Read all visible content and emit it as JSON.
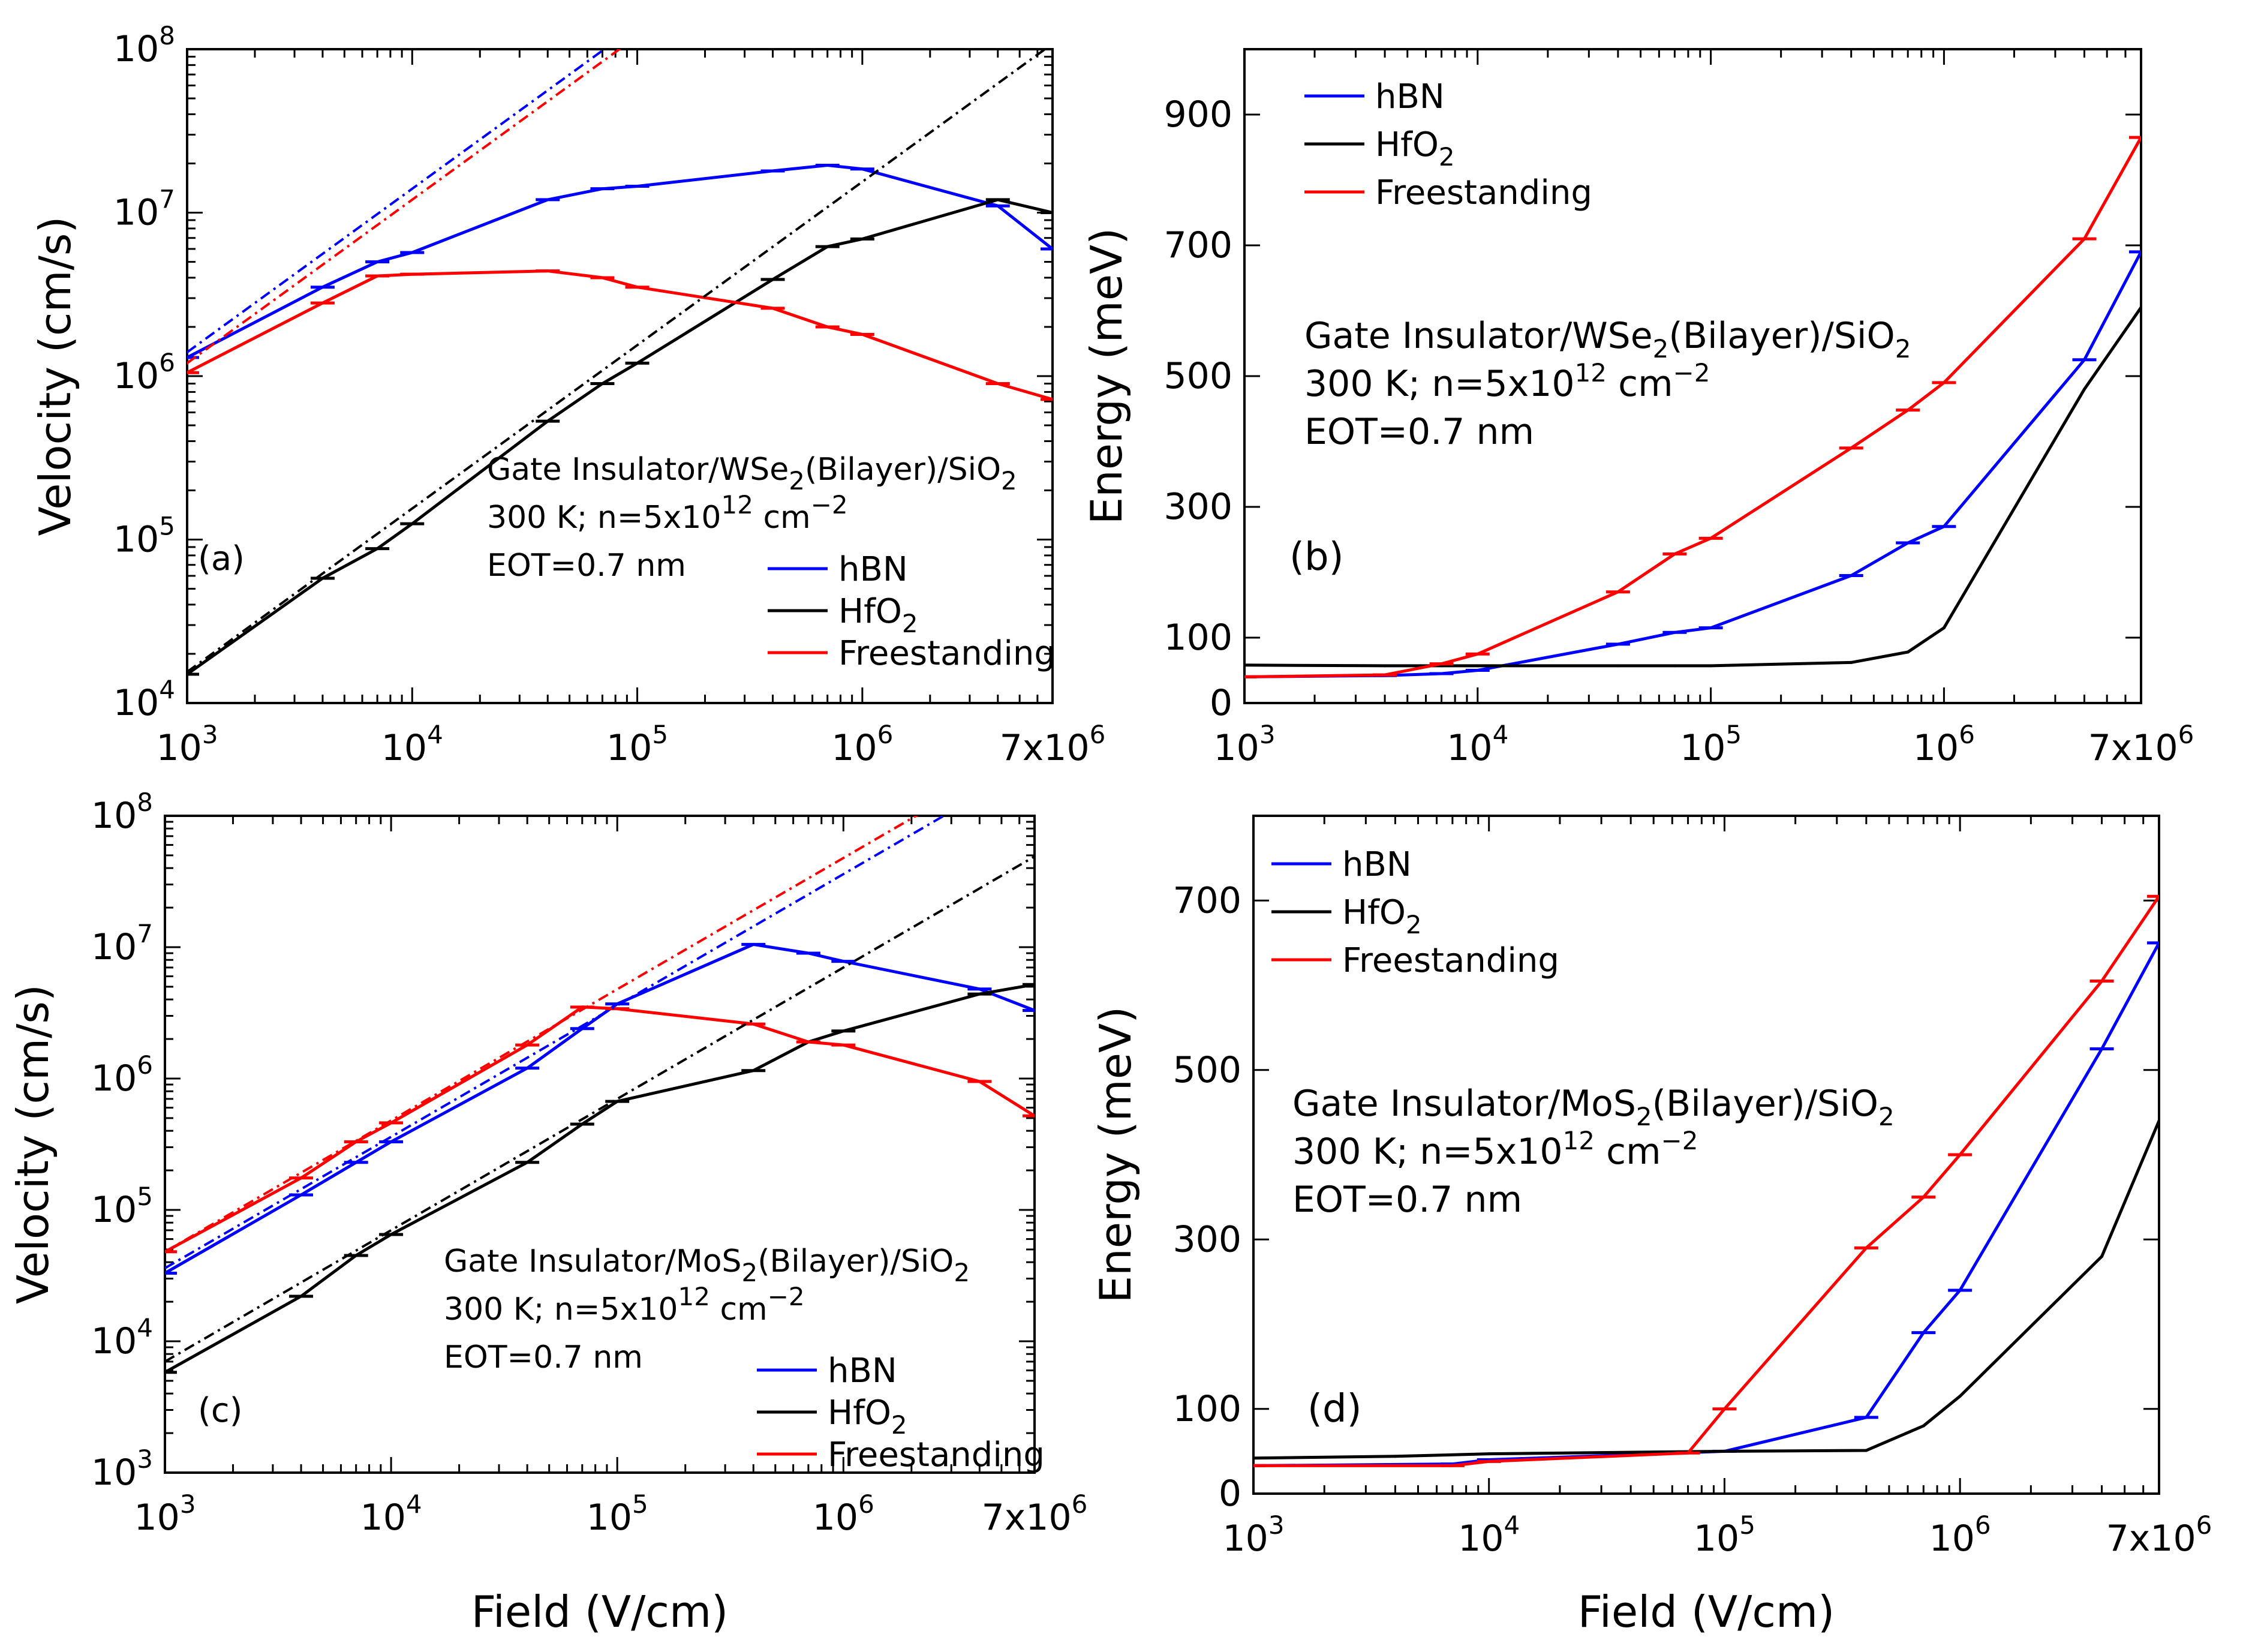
{
  "chart_data": [
    {
      "panel": "a",
      "type": "line",
      "xscale": "log",
      "yscale": "log",
      "xlim": [
        1000,
        7000000
      ],
      "ylim": [
        10000,
        100000000
      ],
      "xlabel": "",
      "ylabel": "Velocity (cm/s)",
      "xtick_values": [
        1000,
        10000,
        100000,
        1000000,
        7000000
      ],
      "xticks": [
        "10",
        "10",
        "10",
        "10",
        "7x10"
      ],
      "xtick_exps": [
        "3",
        "4",
        "5",
        "6",
        "6"
      ],
      "ytick_values": [
        10000,
        100000,
        1000000,
        10000000,
        100000000
      ],
      "yticks": [
        "10",
        "10",
        "10",
        "10",
        "10"
      ],
      "ytick_exps": [
        "4",
        "5",
        "6",
        "7",
        "8"
      ],
      "panel_label": "(a)",
      "annotation": {
        "l1_pre": "Gate Insulator/WSe",
        "l1_sub": "2",
        "l1_post": "(Bilayer)/SiO",
        "l1_sub2": "2",
        "l2_pre": "300 K; n=5x10",
        "l2_sup": "12",
        "l2_mid": " cm",
        "l2_sup2": "−2",
        "l3": "EOT=0.7 nm"
      },
      "legend": {
        "position": "bottom-right",
        "entries": [
          {
            "pre": "hBN",
            "sub": ""
          },
          {
            "pre": "HfO",
            "sub": "2"
          },
          {
            "pre": "Freestanding",
            "sub": ""
          }
        ]
      },
      "series": [
        {
          "name": "hBN",
          "color": "#0000ff",
          "errorbars": true,
          "x": [
            1000,
            4000,
            7000,
            10000,
            40000,
            70000,
            100000,
            400000,
            700000,
            1000000,
            4000000,
            7000000
          ],
          "y": [
            1300000,
            3500000,
            5000000,
            5700000,
            12000000,
            14000000,
            14500000,
            18000000,
            19500000,
            18500000,
            11000000,
            6000000
          ]
        },
        {
          "name": "HfO2",
          "color": "#000000",
          "errorbars": true,
          "x": [
            1000,
            4000,
            7000,
            10000,
            40000,
            70000,
            100000,
            400000,
            700000,
            1000000,
            4000000,
            7000000
          ],
          "y": [
            15000,
            58000,
            88000,
            125000,
            530000,
            900000,
            1200000,
            3900000,
            6200000,
            6900000,
            12000000,
            10000000
          ]
        },
        {
          "name": "Freestanding",
          "color": "#ff0000",
          "errorbars": true,
          "x": [
            1000,
            4000,
            7000,
            10000,
            40000,
            70000,
            100000,
            400000,
            700000,
            1000000,
            4000000,
            7000000
          ],
          "y": [
            1050000,
            2800000,
            4100000,
            4200000,
            4400000,
            4000000,
            3500000,
            2600000,
            2000000,
            1800000,
            900000,
            720000
          ]
        },
        {
          "name": "hBN linear",
          "color": "#0000ff",
          "dashed": true,
          "x": [
            1000,
            80000
          ],
          "y": [
            1400000,
            112000000
          ]
        },
        {
          "name": "Freestanding linear",
          "color": "#ff0000",
          "dashed": true,
          "x": [
            1000,
            85000
          ],
          "y": [
            1200000,
            102000000
          ]
        },
        {
          "name": "HfO2 linear",
          "color": "#000000",
          "dashed": true,
          "x": [
            1000,
            7000000
          ],
          "y": [
            15500,
            108000000
          ]
        }
      ]
    },
    {
      "panel": "b",
      "type": "line",
      "xscale": "log",
      "yscale": "linear",
      "xlim": [
        1000,
        7000000
      ],
      "ylim": [
        0,
        1000
      ],
      "xlabel": "",
      "ylabel": "Energy (meV)",
      "xtick_values": [
        1000,
        10000,
        100000,
        1000000,
        7000000
      ],
      "xticks": [
        "10",
        "10",
        "10",
        "10",
        "7x10"
      ],
      "xtick_exps": [
        "3",
        "4",
        "5",
        "6",
        "6"
      ],
      "ytick_values": [
        0,
        100,
        300,
        500,
        700,
        900
      ],
      "yticks": [
        "0",
        "100",
        "300",
        "500",
        "700",
        "900"
      ],
      "panel_label": "(b)",
      "annotation": {
        "l1_pre": "Gate Insulator/WSe",
        "l1_sub": "2",
        "l1_post": "(Bilayer)/SiO",
        "l1_sub2": "2",
        "l2_pre": "300 K; n=5x10",
        "l2_sup": "12",
        "l2_mid": " cm",
        "l2_sup2": "−2",
        "l3": "EOT=0.7 nm"
      },
      "legend": {
        "position": "top-left",
        "entries": [
          {
            "pre": "hBN",
            "sub": ""
          },
          {
            "pre": "HfO",
            "sub": "2"
          },
          {
            "pre": "Freestanding",
            "sub": ""
          }
        ]
      },
      "series": [
        {
          "name": "hBN",
          "color": "#0000ff",
          "errorbars": true,
          "x": [
            1000,
            4000,
            7000,
            10000,
            40000,
            70000,
            100000,
            400000,
            700000,
            1000000,
            4000000,
            7000000
          ],
          "y": [
            40,
            42,
            45,
            50,
            90,
            108,
            115,
            195,
            245,
            270,
            525,
            690
          ]
        },
        {
          "name": "HfO2",
          "color": "#000000",
          "errorbars": false,
          "x": [
            1000,
            4000,
            7000,
            10000,
            40000,
            70000,
            100000,
            400000,
            700000,
            1000000,
            4000000,
            7000000
          ],
          "y": [
            58,
            57,
            57,
            57,
            57,
            57,
            57,
            62,
            78,
            115,
            480,
            605
          ]
        },
        {
          "name": "Freestanding",
          "color": "#ff0000",
          "errorbars": true,
          "x": [
            1000,
            4000,
            7000,
            10000,
            40000,
            70000,
            100000,
            400000,
            700000,
            1000000,
            4000000,
            7000000
          ],
          "y": [
            40,
            43,
            60,
            75,
            170,
            228,
            252,
            390,
            448,
            490,
            710,
            865
          ]
        }
      ]
    },
    {
      "panel": "c",
      "type": "line",
      "xscale": "log",
      "yscale": "log",
      "xlim": [
        1000,
        7000000
      ],
      "ylim": [
        1000,
        100000000
      ],
      "xlabel": "Field (V/cm)",
      "ylabel": "Velocity (cm/s)",
      "xtick_values": [
        1000,
        10000,
        100000,
        1000000,
        7000000
      ],
      "xticks": [
        "10",
        "10",
        "10",
        "10",
        "7x10"
      ],
      "xtick_exps": [
        "3",
        "4",
        "5",
        "6",
        "6"
      ],
      "ytick_values": [
        1000,
        10000,
        100000,
        1000000,
        10000000,
        100000000
      ],
      "yticks": [
        "10",
        "10",
        "10",
        "10",
        "10",
        "10"
      ],
      "ytick_exps": [
        "3",
        "4",
        "5",
        "6",
        "7",
        "8"
      ],
      "panel_label": "(c)",
      "annotation": {
        "l1_pre": "Gate Insulator/MoS",
        "l1_sub": "2",
        "l1_post": "(Bilayer)/SiO",
        "l1_sub2": "2",
        "l2_pre": "300 K; n=5x10",
        "l2_sup": "12",
        "l2_mid": " cm",
        "l2_sup2": "−2",
        "l3": "EOT=0.7 nm"
      },
      "legend": {
        "position": "bottom-right",
        "entries": [
          {
            "pre": "hBN",
            "sub": ""
          },
          {
            "pre": "HfO",
            "sub": "2"
          },
          {
            "pre": "Freestanding",
            "sub": ""
          }
        ]
      },
      "series": [
        {
          "name": "hBN",
          "color": "#0000ff",
          "errorbars": true,
          "x": [
            1000,
            4000,
            7000,
            10000,
            40000,
            70000,
            100000,
            400000,
            700000,
            1000000,
            4000000,
            7000000
          ],
          "y": [
            33000,
            130000,
            230000,
            330000,
            1200000,
            2400000,
            3700000,
            10500000,
            9000000,
            7800000,
            4800000,
            3300000
          ]
        },
        {
          "name": "HfO2",
          "color": "#000000",
          "errorbars": true,
          "x": [
            1000,
            4000,
            7000,
            10000,
            40000,
            70000,
            100000,
            400000,
            700000,
            1000000,
            4000000,
            7000000
          ],
          "y": [
            5800,
            22000,
            45000,
            65000,
            230000,
            450000,
            670000,
            1150000,
            1900000,
            2300000,
            4400000,
            5200000
          ]
        },
        {
          "name": "Freestanding",
          "color": "#ff0000",
          "errorbars": true,
          "x": [
            1000,
            4000,
            7000,
            10000,
            40000,
            70000,
            100000,
            400000,
            700000,
            1000000,
            4000000,
            7000000
          ],
          "y": [
            48000,
            175000,
            330000,
            460000,
            1800000,
            3500000,
            3400000,
            2600000,
            1900000,
            1800000,
            950000,
            520000
          ]
        },
        {
          "name": "Freestanding linear",
          "color": "#ff0000",
          "dashed": true,
          "x": [
            1000,
            2200000
          ],
          "y": [
            48000,
            105000000
          ]
        },
        {
          "name": "hBN linear",
          "color": "#0000ff",
          "dashed": true,
          "x": [
            1000,
            3000000
          ],
          "y": [
            36000,
            108000000
          ]
        },
        {
          "name": "HfO2 linear",
          "color": "#000000",
          "dashed": true,
          "x": [
            1000,
            7000000
          ],
          "y": [
            7000,
            49000000
          ]
        }
      ]
    },
    {
      "panel": "d",
      "type": "line",
      "xscale": "log",
      "yscale": "linear",
      "xlim": [
        1000,
        7000000
      ],
      "ylim": [
        0,
        800
      ],
      "xlabel": "Field (V/cm)",
      "ylabel": "Energy (meV)",
      "xtick_values": [
        1000,
        10000,
        100000,
        1000000,
        7000000
      ],
      "xticks": [
        "10",
        "10",
        "10",
        "10",
        "7x10"
      ],
      "xtick_exps": [
        "3",
        "4",
        "5",
        "6",
        "6"
      ],
      "ytick_values": [
        0,
        100,
        300,
        500,
        700
      ],
      "yticks": [
        "0",
        "100",
        "300",
        "500",
        "700"
      ],
      "panel_label": "(d)",
      "annotation": {
        "l1_pre": "Gate Insulator/MoS",
        "l1_sub": "2",
        "l1_post": "(Bilayer)/SiO",
        "l1_sub2": "2",
        "l2_pre": "300 K; n=5x10",
        "l2_sup": "12",
        "l2_mid": " cm",
        "l2_sup2": "−2",
        "l3": "EOT=0.7 nm"
      },
      "legend": {
        "position": "top-left",
        "entries": [
          {
            "pre": "hBN",
            "sub": ""
          },
          {
            "pre": "HfO",
            "sub": "2"
          },
          {
            "pre": "Freestanding",
            "sub": ""
          }
        ]
      },
      "series": [
        {
          "name": "hBN",
          "color": "#0000ff",
          "errorbars": true,
          "x": [
            1000,
            7000,
            10000,
            100000,
            400000,
            700000,
            1000000,
            4000000,
            7000000
          ],
          "y": [
            33,
            35,
            40,
            50,
            90,
            190,
            240,
            525,
            650
          ]
        },
        {
          "name": "HfO2",
          "color": "#000000",
          "errorbars": false,
          "x": [
            1000,
            4000,
            10000,
            100000,
            400000,
            700000,
            1000000,
            4000000,
            7000000
          ],
          "y": [
            42,
            44,
            47,
            50,
            51,
            80,
            115,
            280,
            440
          ]
        },
        {
          "name": "Freestanding",
          "color": "#ff0000",
          "errorbars": true,
          "x": [
            1000,
            7000,
            10000,
            70000,
            100000,
            400000,
            700000,
            1000000,
            4000000,
            7000000
          ],
          "y": [
            33,
            33,
            38,
            48,
            100,
            290,
            350,
            400,
            605,
            705
          ]
        }
      ]
    }
  ]
}
